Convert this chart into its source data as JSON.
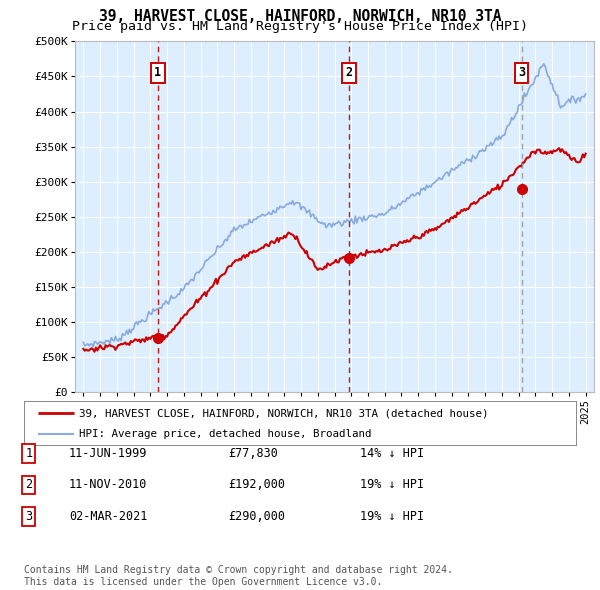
{
  "title": "39, HARVEST CLOSE, HAINFORD, NORWICH, NR10 3TA",
  "subtitle": "Price paid vs. HM Land Registry's House Price Index (HPI)",
  "title_fontsize": 10.5,
  "subtitle_fontsize": 9.5,
  "ylim": [
    0,
    500000
  ],
  "yticks": [
    0,
    50000,
    100000,
    150000,
    200000,
    250000,
    300000,
    350000,
    400000,
    450000,
    500000
  ],
  "ytick_labels": [
    "£0",
    "£50K",
    "£100K",
    "£150K",
    "£200K",
    "£250K",
    "£300K",
    "£350K",
    "£400K",
    "£450K",
    "£500K"
  ],
  "transactions": [
    {
      "date_num": 1999.44,
      "price": 77830,
      "label": "1",
      "vline_style": "dashed",
      "vline_color": "#cc0000"
    },
    {
      "date_num": 2010.86,
      "price": 192000,
      "label": "2",
      "vline_style": "dashed",
      "vline_color": "#cc0000"
    },
    {
      "date_num": 2021.17,
      "price": 290000,
      "label": "3",
      "vline_style": "dashed",
      "vline_color": "#999999"
    }
  ],
  "legend_entries": [
    {
      "label": "39, HARVEST CLOSE, HAINFORD, NORWICH, NR10 3TA (detached house)",
      "color": "#cc0000",
      "lw": 1.5
    },
    {
      "label": "HPI: Average price, detached house, Broadland",
      "color": "#88aadd",
      "lw": 1.2
    }
  ],
  "table_rows": [
    [
      "1",
      "11-JUN-1999",
      "£77,830",
      "14% ↓ HPI"
    ],
    [
      "2",
      "11-NOV-2010",
      "£192,000",
      "19% ↓ HPI"
    ],
    [
      "3",
      "02-MAR-2021",
      "£290,000",
      "19% ↓ HPI"
    ]
  ],
  "footer": "Contains HM Land Registry data © Crown copyright and database right 2024.\nThis data is licensed under the Open Government Licence v3.0.",
  "box_color": "#cc0000",
  "plot_bg": "#ddeeff",
  "grid_color": "#ffffff",
  "xlim_left": 1994.5,
  "xlim_right": 2025.5
}
